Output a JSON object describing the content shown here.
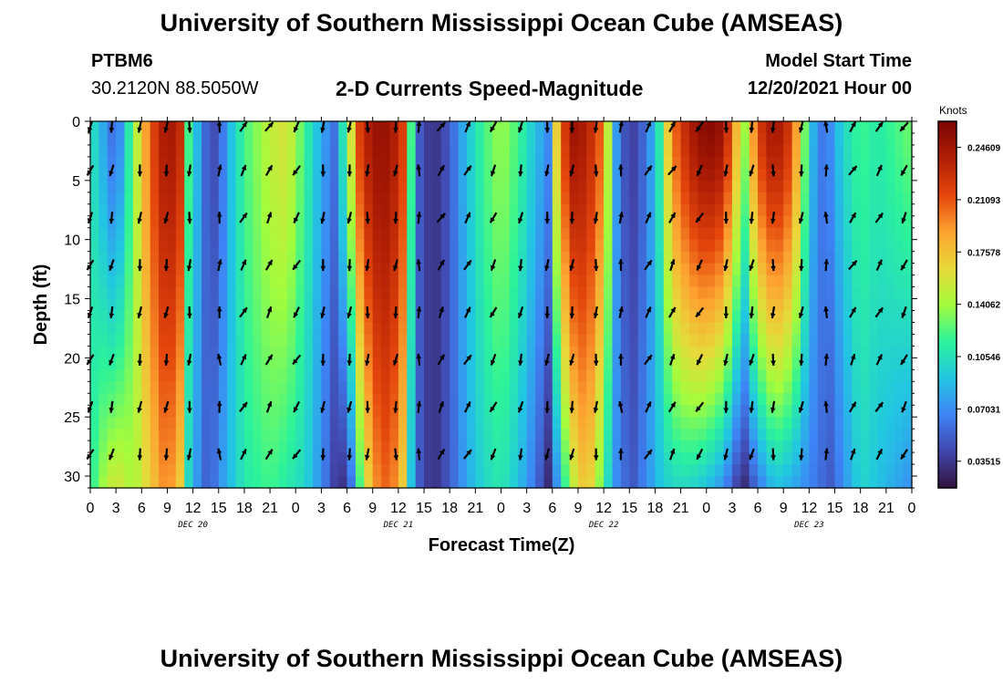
{
  "header": {
    "title": "University of Southern Mississippi Ocean Cube (AMSEAS)",
    "station": "PTBM6",
    "coords": "30.2120N  88.5050W",
    "subtitle": "2-D Currents Speed-Magnitude",
    "model_start_label": "Model Start Time",
    "model_start_value": "12/20/2021 Hour 00"
  },
  "footer": {
    "title": "University of Southern Mississippi Ocean Cube (AMSEAS)"
  },
  "colors": {
    "background": "#ffffff",
    "text": "#000000",
    "arrow": "#000000"
  },
  "chart_data": {
    "type": "heatmap",
    "xlabel": "Forecast Time(Z)",
    "ylabel": "Depth (ft)",
    "x_range_hours": [
      0,
      96
    ],
    "ylim": [
      0,
      31
    ],
    "y_inverted": true,
    "x_tick_labels": [
      "0",
      "3",
      "6",
      "9",
      "12",
      "15",
      "18",
      "21",
      "0",
      "3",
      "6",
      "9",
      "12",
      "15",
      "18",
      "21",
      "0",
      "3",
      "6",
      "9",
      "12",
      "15",
      "18",
      "21",
      "0",
      "3",
      "6",
      "9",
      "12",
      "15",
      "18",
      "21",
      "0"
    ],
    "day_labels": [
      {
        "hour": 12,
        "label": "DEC 20"
      },
      {
        "hour": 36,
        "label": "DEC 21"
      },
      {
        "hour": 60,
        "label": "DEC 22"
      },
      {
        "hour": 84,
        "label": "DEC 23"
      }
    ],
    "y_ticks": [
      0,
      5,
      10,
      15,
      20,
      25,
      30
    ],
    "colorbar": {
      "title": "Knots",
      "min": 0.0172,
      "max": 0.2636,
      "tick_labels": [
        "0.24609",
        "0.21093",
        "0.17578",
        "0.14062",
        "0.10546",
        "0.07031",
        "0.03515"
      ],
      "tick_values": [
        0.24609,
        0.21093,
        0.17578,
        0.14062,
        0.10546,
        0.07031,
        0.03515
      ]
    },
    "arrow_depths_ft": [
      0,
      4,
      8,
      12,
      16,
      20,
      24,
      28
    ],
    "arrow_hours": [
      0,
      2.5,
      5.8,
      8.9,
      11.6,
      15.1,
      17.9,
      20.9,
      24.1,
      27.2,
      30.3,
      32.4,
      35.7,
      38.4,
      41.0,
      44.1,
      47.1,
      50.3,
      53.4,
      56.3,
      59.1,
      62.0,
      65.2,
      68.0,
      71.2,
      74.3,
      77.3,
      79.8,
      83.1,
      86.0,
      89.1,
      92.2,
      95.1
    ],
    "speed_profile": [
      {
        "hour": 0,
        "surface": 0.11,
        "bottom": 0.11
      },
      {
        "hour": 1.5,
        "surface": 0.08,
        "bottom": 0.14
      },
      {
        "hour": 3,
        "surface": 0.05,
        "bottom": 0.16
      },
      {
        "hour": 5,
        "surface": 0.13,
        "bottom": 0.14
      },
      {
        "hour": 7,
        "surface": 0.21,
        "bottom": 0.17
      },
      {
        "hour": 9,
        "surface": 0.25,
        "bottom": 0.2
      },
      {
        "hour": 10.5,
        "surface": 0.23,
        "bottom": 0.17
      },
      {
        "hour": 11.5,
        "surface": 0.12,
        "bottom": 0.1
      },
      {
        "hour": 13,
        "surface": 0.07,
        "bottom": 0.06
      },
      {
        "hour": 14,
        "surface": 0.04,
        "bottom": 0.05
      },
      {
        "hour": 15,
        "surface": 0.05,
        "bottom": 0.07
      },
      {
        "hour": 16.5,
        "surface": 0.09,
        "bottom": 0.09
      },
      {
        "hour": 18,
        "surface": 0.12,
        "bottom": 0.11
      },
      {
        "hour": 21,
        "surface": 0.15,
        "bottom": 0.12
      },
      {
        "hour": 23,
        "surface": 0.16,
        "bottom": 0.11
      },
      {
        "hour": 25,
        "surface": 0.12,
        "bottom": 0.1
      },
      {
        "hour": 27,
        "surface": 0.08,
        "bottom": 0.07
      },
      {
        "hour": 28.5,
        "surface": 0.06,
        "bottom": 0.04
      },
      {
        "hour": 30,
        "surface": 0.13,
        "bottom": 0.03
      },
      {
        "hour": 31.5,
        "surface": 0.22,
        "bottom": 0.12
      },
      {
        "hour": 33,
        "surface": 0.25,
        "bottom": 0.19
      },
      {
        "hour": 35,
        "surface": 0.25,
        "bottom": 0.21
      },
      {
        "hour": 36.5,
        "surface": 0.22,
        "bottom": 0.17
      },
      {
        "hour": 37.5,
        "surface": 0.12,
        "bottom": 0.09
      },
      {
        "hour": 38.5,
        "surface": 0.05,
        "bottom": 0.05
      },
      {
        "hour": 40,
        "surface": 0.03,
        "bottom": 0.03
      },
      {
        "hour": 42,
        "surface": 0.05,
        "bottom": 0.05
      },
      {
        "hour": 44,
        "surface": 0.09,
        "bottom": 0.08
      },
      {
        "hour": 46,
        "surface": 0.12,
        "bottom": 0.1
      },
      {
        "hour": 48,
        "surface": 0.14,
        "bottom": 0.11
      },
      {
        "hour": 50,
        "surface": 0.12,
        "bottom": 0.09
      },
      {
        "hour": 52,
        "surface": 0.09,
        "bottom": 0.06
      },
      {
        "hour": 53.5,
        "surface": 0.07,
        "bottom": 0.03
      },
      {
        "hour": 54.5,
        "surface": 0.17,
        "bottom": 0.07
      },
      {
        "hour": 56,
        "surface": 0.25,
        "bottom": 0.14
      },
      {
        "hour": 58,
        "surface": 0.24,
        "bottom": 0.18
      },
      {
        "hour": 60,
        "surface": 0.2,
        "bottom": 0.12
      },
      {
        "hour": 61,
        "surface": 0.1,
        "bottom": 0.08
      },
      {
        "hour": 62,
        "surface": 0.05,
        "bottom": 0.06
      },
      {
        "hour": 63.5,
        "surface": 0.04,
        "bottom": 0.05
      },
      {
        "hour": 65,
        "surface": 0.06,
        "bottom": 0.07
      },
      {
        "hour": 66.5,
        "surface": 0.11,
        "bottom": 0.09
      },
      {
        "hour": 68,
        "surface": 0.2,
        "bottom": 0.1
      },
      {
        "hour": 70,
        "surface": 0.24,
        "bottom": 0.1
      },
      {
        "hour": 72,
        "surface": 0.26,
        "bottom": 0.09
      },
      {
        "hour": 74,
        "surface": 0.25,
        "bottom": 0.07
      },
      {
        "hour": 75.5,
        "surface": 0.18,
        "bottom": 0.04
      },
      {
        "hour": 76.5,
        "surface": 0.14,
        "bottom": 0.03
      },
      {
        "hour": 78,
        "surface": 0.22,
        "bottom": 0.06
      },
      {
        "hour": 80,
        "surface": 0.25,
        "bottom": 0.09
      },
      {
        "hour": 82,
        "surface": 0.22,
        "bottom": 0.08
      },
      {
        "hour": 83.5,
        "surface": 0.13,
        "bottom": 0.07
      },
      {
        "hour": 85,
        "surface": 0.06,
        "bottom": 0.06
      },
      {
        "hour": 86.5,
        "surface": 0.07,
        "bottom": 0.05
      },
      {
        "hour": 88,
        "surface": 0.1,
        "bottom": 0.07
      },
      {
        "hour": 90,
        "surface": 0.12,
        "bottom": 0.1
      },
      {
        "hour": 92,
        "surface": 0.11,
        "bottom": 0.09
      },
      {
        "hour": 94,
        "surface": 0.12,
        "bottom": 0.08
      },
      {
        "hour": 96,
        "surface": 0.13,
        "bottom": 0.07
      }
    ]
  }
}
